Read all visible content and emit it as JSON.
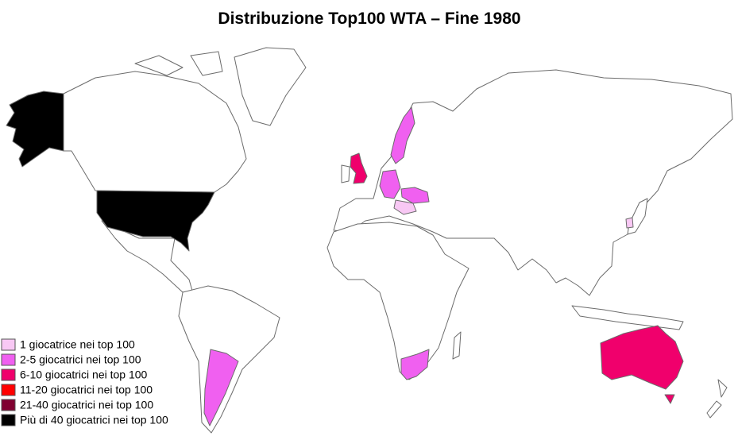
{
  "title": "Distribuzione Top100 WTA – Fine 1980",
  "legend": [
    {
      "label": "1 giocatrice nei top 100",
      "color": "#f8c8f4"
    },
    {
      "label": "2-5 giocatrici nei top 100",
      "color": "#f060f0"
    },
    {
      "label": "6-10 giocatrici nei top 100",
      "color": "#f0006c"
    },
    {
      "label": "11-20 giocatrici nei top 100",
      "color": "#ff0000"
    },
    {
      "label": "21-40 giocatrici nei top 100",
      "color": "#800030"
    },
    {
      "label": "Più di 40 giocatrici nei top 100",
      "color": "#000000"
    }
  ]
}
